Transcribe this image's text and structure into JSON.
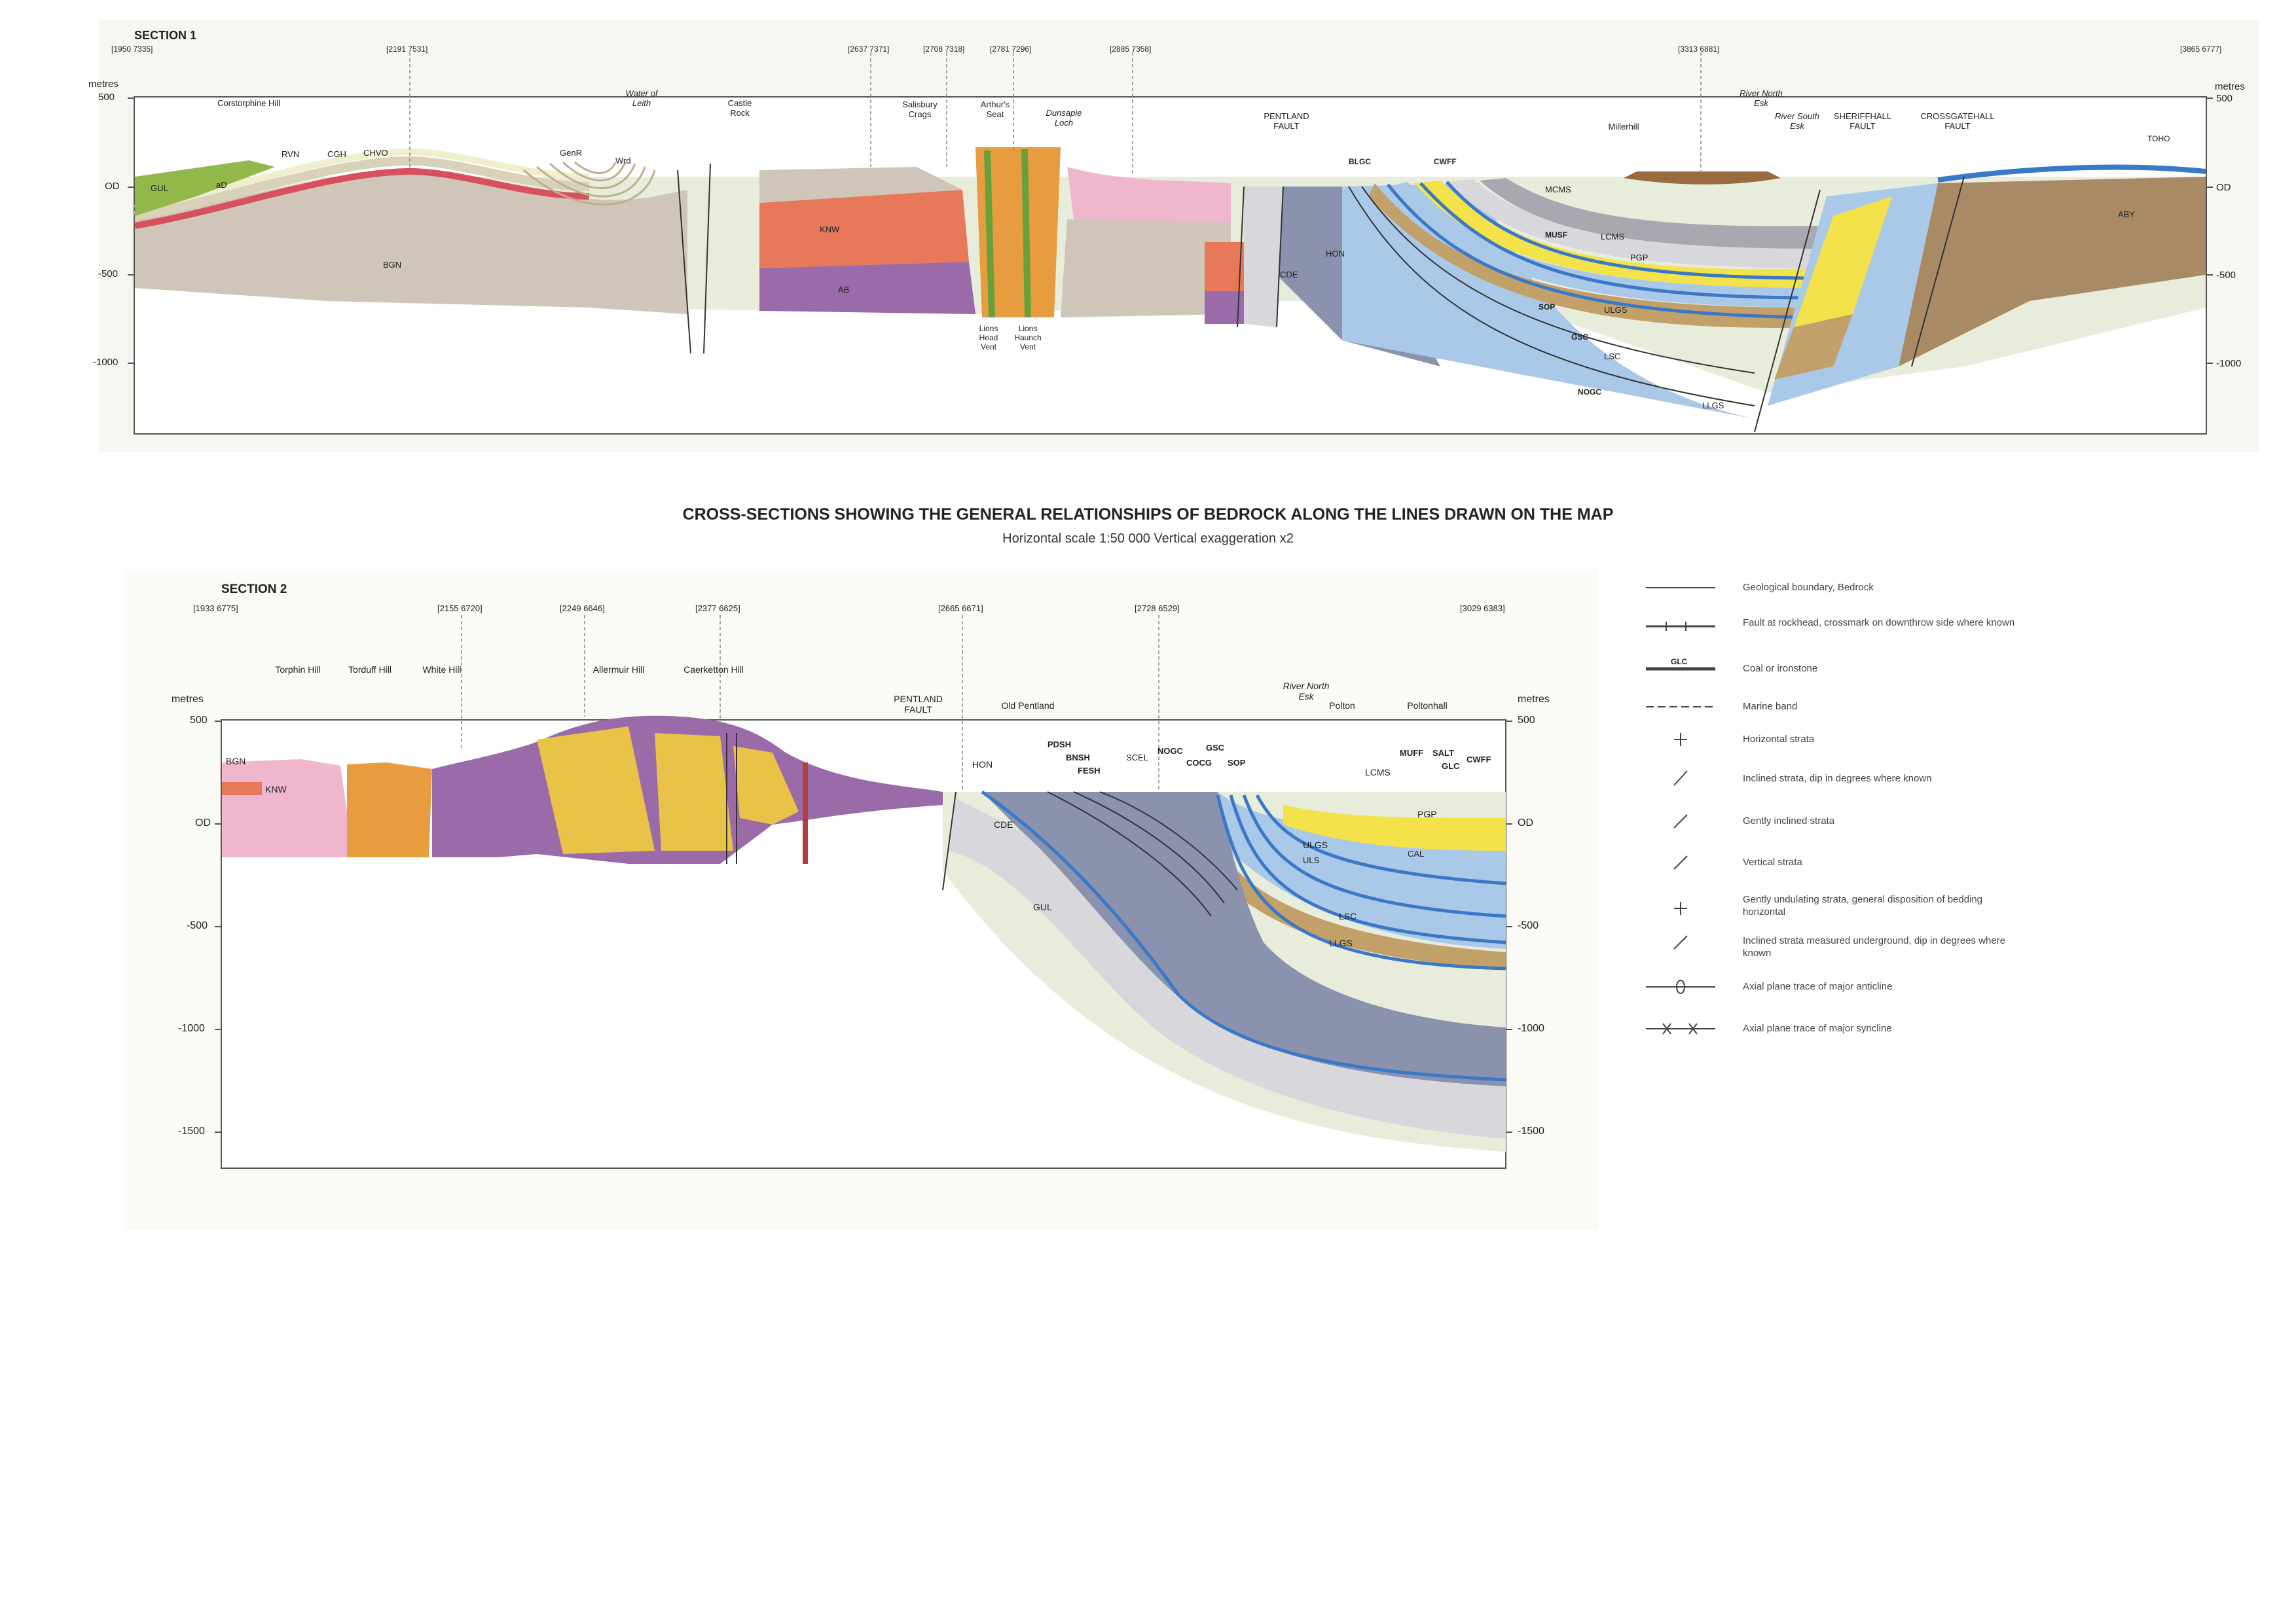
{
  "title": "CROSS-SECTIONS SHOWING THE GENERAL RELATIONSHIPS OF BEDROCK ALONG THE LINES DRAWN ON THE MAP",
  "subtitle": "Horizontal scale 1:50 000  Vertical exaggeration x2",
  "colors": {
    "BGN": "#cfc5b8",
    "GUL": "#e8ecdb",
    "KNW": "#e8785a",
    "AB": "#9b6aa8",
    "PGP": "#f3e24a",
    "LSC": "#c2a06a",
    "ULGS": "#aac8e8",
    "HON": "#8a92ad",
    "CDE": "#d8d8dc",
    "ABY": "#a88a65",
    "pink": "#efb6cd",
    "orange": "#e89c40",
    "blue": "#3a78c8",
    "green": "#93b84a",
    "red": "#d8505e"
  },
  "section1": {
    "title": "SECTION 1",
    "axis_unit": "metres",
    "ticks": [
      "500",
      "OD",
      "-500",
      "-1000"
    ],
    "grid_refs": [
      "[1950 7335]",
      "[2191 7531]",
      "[2637 7371]",
      "[2708 7318]",
      "[2781 7296]",
      "[2885 7358]",
      "[3313 6881]",
      "[3865 6777]"
    ],
    "places": [
      {
        "name": "Corstorphine Hill"
      },
      {
        "name": "Water of Leith"
      },
      {
        "name": "Castle Rock"
      },
      {
        "name": "Salisbury Crags"
      },
      {
        "name": "Arthur's Seat"
      },
      {
        "name": "Dunsapie Loch"
      },
      {
        "name": "PENTLAND FAULT"
      },
      {
        "name": "Millerhill"
      },
      {
        "name": "River North Esk"
      },
      {
        "name": "River South Esk"
      },
      {
        "name": "SHERIFFHALL FAULT"
      },
      {
        "name": "CROSSGATEHALL FAULT"
      },
      {
        "name": "Lions Head Vent"
      },
      {
        "name": "Lions Haunch Vent"
      }
    ],
    "units": [
      "GUL",
      "aD",
      "RVN",
      "CGH",
      "CHVO",
      "GenR",
      "Wrd",
      "BGN",
      "KNW",
      "AB",
      "CDE",
      "HON",
      "PGP",
      "ULGS",
      "LSC",
      "LLGS",
      "MCMS",
      "LCMS",
      "ABY",
      "GSC",
      "SOP",
      "NOGC",
      "TOHO",
      "BLGC",
      "CWFF",
      "MUSF"
    ]
  },
  "section2": {
    "title": "SECTION 2",
    "axis_unit": "metres",
    "ticks": [
      "500",
      "OD",
      "-500",
      "-1000",
      "-1500"
    ],
    "grid_refs": [
      "[1933 6775]",
      "[2155 6720]",
      "[2249 6646]",
      "[2377 6625]",
      "[2665 6671]",
      "[2728 6529]",
      "[3029 6383]"
    ],
    "places": [
      {
        "name": "Torphin Hill"
      },
      {
        "name": "Torduff Hill"
      },
      {
        "name": "White Hill"
      },
      {
        "name": "Allermuir Hill"
      },
      {
        "name": "Caerketton Hill"
      },
      {
        "name": "PENTLAND FAULT"
      },
      {
        "name": "Old Pentland"
      },
      {
        "name": "River North Esk"
      },
      {
        "name": "Polton"
      },
      {
        "name": "Poltonhall"
      }
    ],
    "units": [
      "BGN",
      "KNW",
      "HON",
      "CDE",
      "GUL",
      "PGP",
      "ULGS",
      "LSC",
      "LLGS",
      "CAL",
      "ULS",
      "LCMS",
      "MUFF",
      "SALT",
      "GLC",
      "CWFF",
      "PDSH",
      "BNSH",
      "FESH",
      "SCEL",
      "NOGC",
      "GSC",
      "COCG",
      "SOP"
    ]
  },
  "legend": [
    {
      "icon": "boundary-line",
      "label": "Geological boundary, Bedrock"
    },
    {
      "icon": "fault-line",
      "label": "Fault at rockhead, crossmark on downthrow side where known"
    },
    {
      "icon": "coal-line",
      "symbol_text": "GLC",
      "label": "Coal or ironstone"
    },
    {
      "icon": "marine-band",
      "label": "Marine band"
    },
    {
      "icon": "horizontal-strata",
      "label": "Horizontal strata"
    },
    {
      "icon": "inclined-strata",
      "label": "Inclined strata, dip in degrees where known"
    },
    {
      "icon": "gently-inclined",
      "label": "Gently inclined strata"
    },
    {
      "icon": "vertical-strata",
      "label": "Vertical strata"
    },
    {
      "icon": "undulating-strata",
      "label": "Gently undulating strata, general disposition of bedding horizontal"
    },
    {
      "icon": "underground-strata",
      "label": "Inclined strata measured underground, dip in degrees where known"
    },
    {
      "icon": "anticline-trace",
      "label": "Axial plane trace of major anticline"
    },
    {
      "icon": "syncline-trace",
      "label": "Axial plane trace of major syncline"
    }
  ]
}
